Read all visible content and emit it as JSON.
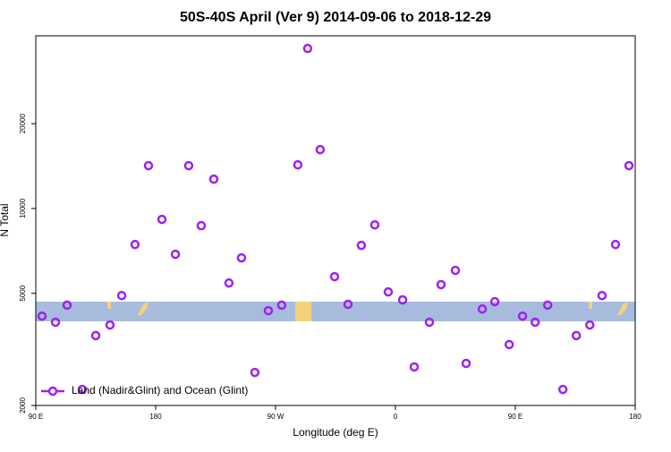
{
  "chart_data": {
    "type": "scatter",
    "title": "50S-40S April (Ver 9)   2014-09-06 to 2018-12-29",
    "x_label": "Longitude (deg E)",
    "y_label": "N Total",
    "xlim": [
      90,
      540
    ],
    "xticks": [
      {
        "value": 90,
        "label": "90 E"
      },
      180,
      {
        "value": 270,
        "label": "90 W"
      },
      {
        "value": 360,
        "label": "0"
      },
      {
        "value": 450,
        "label": "90 E"
      },
      {
        "value": 540,
        "label": "180"
      }
    ],
    "ylim": [
      2000,
      41000
    ],
    "ylog": true,
    "yticks": [
      2000,
      5000,
      10000,
      20000
    ],
    "legend": "bottom-left",
    "series": [
      {
        "name": "Land (Nadir&Glint) and Ocean (Glint)",
        "color": "#a020f0",
        "x": [
          94.7,
          104.8,
          113.5,
          124.9,
          135,
          145.7,
          154.5,
          164.5,
          174.6,
          184.7,
          194.8,
          204.8,
          214.2,
          223.6,
          235,
          244.4,
          254.5,
          264.6,
          274.6,
          286.7,
          294.1,
          303.5,
          314.3,
          324.4,
          334.4,
          344.5,
          354.6,
          365.4,
          374.1,
          385.5,
          394.2,
          405,
          413.1,
          425.2,
          434.6,
          445.4,
          455.4,
          464.9,
          474.3,
          485.7,
          495.8,
          505.9,
          515.1,
          525.2,
          535.3
        ],
        "values": [
          4150,
          3950,
          4540,
          2280,
          3540,
          3860,
          4910,
          7450,
          14190,
          9150,
          6880,
          14190,
          8690,
          12710,
          5440,
          6680,
          2620,
          4340,
          4540,
          14290,
          36960,
          16180,
          5730,
          4570,
          7400,
          8750,
          5060,
          4740,
          2740,
          3950,
          5370,
          6030,
          2820,
          4400,
          4670,
          3290,
          4150,
          3950,
          4540,
          2280,
          3540,
          3860,
          4910,
          7450,
          14190
        ]
      }
    ]
  }
}
